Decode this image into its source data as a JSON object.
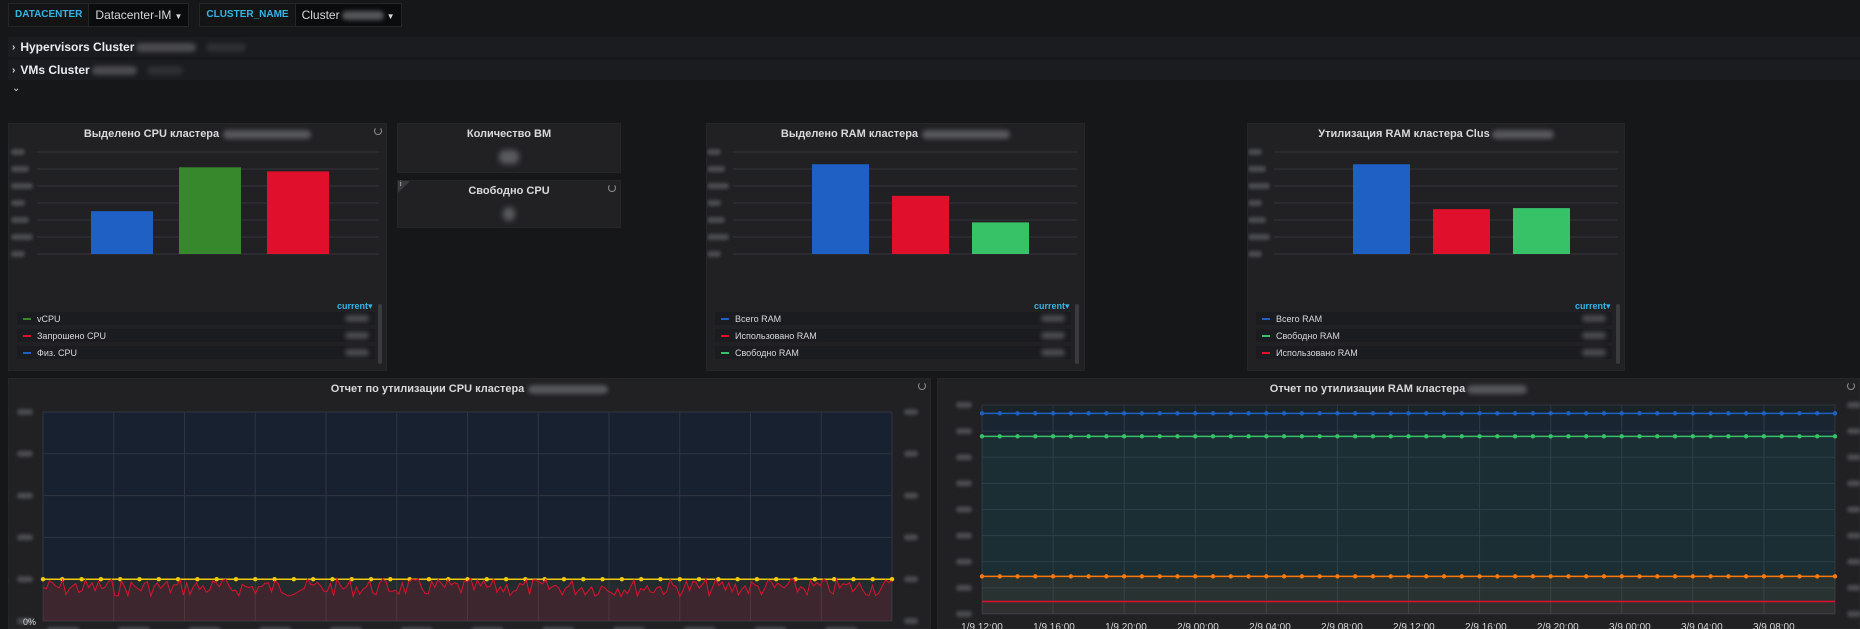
{
  "variables": {
    "datacenter_label": "DATACENTER",
    "datacenter_value": "Datacenter-IM",
    "cluster_label": "CLUSTER_NAME",
    "cluster_value": "Cluster"
  },
  "rows": {
    "hypervisors": "Hypervisors Cluster",
    "vms": "VMs Cluster"
  },
  "panels": {
    "cpu_alloc": {
      "title": "Выделено CPU кластера",
      "legend_header": "current▾",
      "legend": [
        {
          "label": "vCPU",
          "color": "#37872d"
        },
        {
          "label": "Запрошено CPU",
          "color": "#e0102c"
        },
        {
          "label": "Физ. CPU",
          "color": "#1f60c4"
        }
      ]
    },
    "vm_count": {
      "title": "Количество ВМ"
    },
    "free_cpu": {
      "title": "Свободно CPU"
    },
    "ram_alloc": {
      "title": "Выделено RAM кластера",
      "legend_header": "current▾",
      "legend": [
        {
          "label": "Всего RAM",
          "color": "#1f60c4"
        },
        {
          "label": "Использовано RAM",
          "color": "#e0102c"
        },
        {
          "label": "Свободно RAM",
          "color": "#37c268"
        }
      ]
    },
    "ram_util": {
      "title": "Утилизация RAM кластера Clus",
      "legend_header": "current▾",
      "legend": [
        {
          "label": "Всего RAM",
          "color": "#1f60c4"
        },
        {
          "label": "Свободно RAM",
          "color": "#37c268"
        },
        {
          "label": "Использовано RAM",
          "color": "#e0102c"
        }
      ]
    },
    "cpu_report": {
      "title": "Отчет по утилизации CPU кластера",
      "y_min_label": "0%"
    },
    "ram_report": {
      "title": "Отчет по утилизации RAM кластера",
      "x_ticks": [
        "1/9 12:00",
        "1/9 16:00",
        "1/9 20:00",
        "2/9 00:00",
        "2/9 04:00",
        "2/9 08:00",
        "2/9 12:00",
        "2/9 16:00",
        "2/9 20:00",
        "3/9 00:00",
        "3/9 04:00",
        "3/9 08:00"
      ]
    }
  },
  "chart_data": [
    {
      "type": "bar",
      "title": "Выделено CPU кластера",
      "categories": [
        "Физ. CPU",
        "vCPU",
        "Запрошено CPU"
      ],
      "values": [
        0.42,
        0.85,
        0.81
      ],
      "colors": [
        "#1f60c4",
        "#37872d",
        "#e0102c"
      ],
      "ylim": [
        0,
        1
      ]
    },
    {
      "type": "bar",
      "title": "Выделено RAM кластера",
      "categories": [
        "Всего RAM",
        "Использовано RAM",
        "Свободно RAM"
      ],
      "values": [
        0.88,
        0.57,
        0.31
      ],
      "colors": [
        "#1f60c4",
        "#e0102c",
        "#37c268"
      ],
      "ylim": [
        0,
        1
      ]
    },
    {
      "type": "bar",
      "title": "Утилизация RAM кластера",
      "categories": [
        "Всего RAM",
        "Использовано RAM",
        "Свободно RAM"
      ],
      "values": [
        0.88,
        0.44,
        0.45
      ],
      "colors": [
        "#1f60c4",
        "#e0102c",
        "#37c268"
      ],
      "ylim": [
        0,
        1
      ]
    },
    {
      "type": "line",
      "title": "Отчет по утилизации CPU кластера",
      "ylim": [
        0,
        1
      ],
      "series": [
        {
          "color": "#f2cc0c",
          "level": 0.2
        },
        {
          "color": "#e0102c",
          "level": 0.16
        }
      ]
    },
    {
      "type": "line",
      "title": "Отчет по утилизации RAM кластера",
      "ylim": [
        0,
        1
      ],
      "series": [
        {
          "color": "#1f60c4",
          "level": 0.96
        },
        {
          "color": "#37c268",
          "level": 0.85
        },
        {
          "color": "#ff780a",
          "level": 0.18
        },
        {
          "color": "#e0102c",
          "level": 0.06
        }
      ]
    }
  ]
}
